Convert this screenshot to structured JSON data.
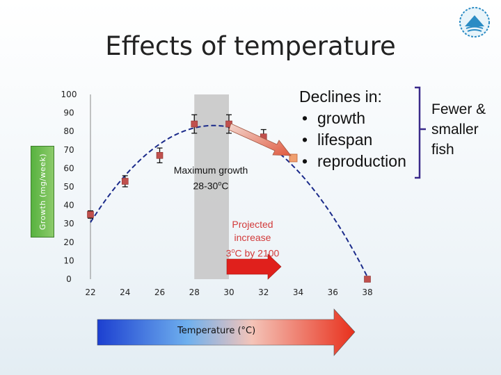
{
  "slide": {
    "title": "Effects of temperature"
  },
  "annotations": {
    "declines_title": "Declines in:",
    "declines_items": [
      "growth",
      "lifespan",
      "reproduction"
    ],
    "fewer_lines": [
      "Fewer &",
      "smaller",
      "fish"
    ],
    "max_growth_lines": [
      "Maximum growth",
      "28-30oC"
    ],
    "projected_lines": [
      "Projected",
      "increase",
      "3oC by 2100"
    ]
  },
  "colors": {
    "marker": "#c0504d",
    "band": "#c8c8c8",
    "curve": "#1a2a8a",
    "arrow_red": "#e0201c",
    "ylabel_bg": "#58b240"
  },
  "icons": [
    "fish-logo-icon"
  ],
  "chart_data": {
    "type": "scatter",
    "title": "",
    "ylabel": "Growth (mg/week)",
    "xlabel": "Temperature (°C)",
    "xlim": [
      22,
      38
    ],
    "ylim": [
      0,
      100
    ],
    "x_ticks": [
      "22",
      "24",
      "26",
      "28",
      "30",
      "32",
      "34",
      "36",
      "38"
    ],
    "y_ticks": [
      "0",
      "10",
      "20",
      "30",
      "40",
      "50",
      "60",
      "70",
      "80",
      "90",
      "100"
    ],
    "grid": false,
    "highlight_band": [
      28,
      30
    ],
    "series": [
      {
        "points": [
          {
            "x": 22,
            "y": 35,
            "err": 2
          },
          {
            "x": 24,
            "y": 53,
            "err": 3
          },
          {
            "x": 26,
            "y": 67,
            "err": 4
          },
          {
            "x": 28,
            "y": 84,
            "err": 5
          },
          {
            "x": 30,
            "y": 84,
            "err": 5
          },
          {
            "x": 32,
            "y": 77,
            "err": 4
          },
          {
            "x": 38,
            "y": 0,
            "err": 0
          }
        ]
      }
    ],
    "fit_curve": "quadratic"
  }
}
